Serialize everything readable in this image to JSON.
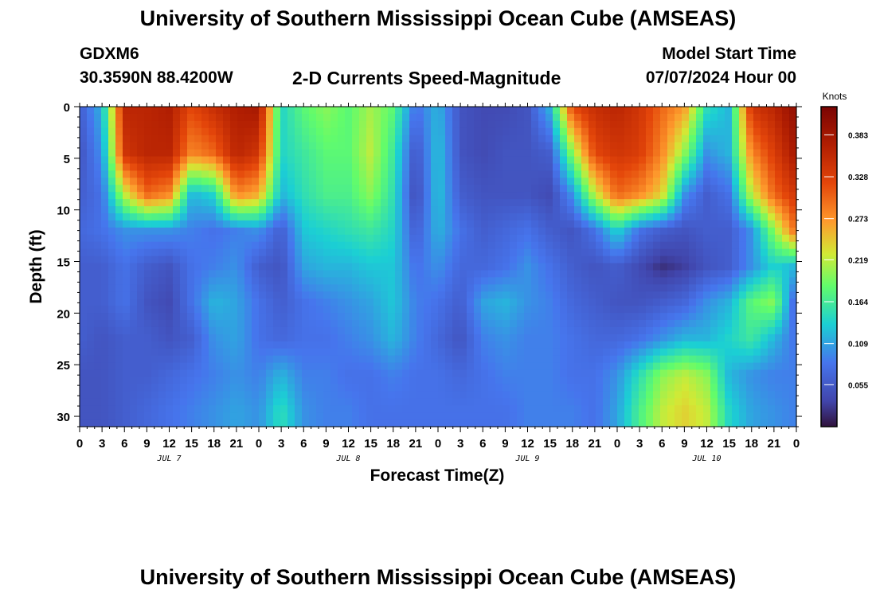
{
  "title": "University of Southern Mississippi Ocean Cube (AMSEAS)",
  "station": {
    "name": "GDXM6",
    "coords": "30.3590N  88.4200W"
  },
  "plot_title": "2-D Currents Speed-Magnitude",
  "model_start": {
    "label": "Model Start Time",
    "value": "07/07/2024 Hour 00"
  },
  "footer_title": "University of Southern Mississippi Ocean Cube (AMSEAS)",
  "chart_data": {
    "type": "heatmap",
    "title": "2-D Currents Speed-Magnitude",
    "xlabel": "Forecast Time(Z)",
    "ylabel": "Depth (ft)",
    "x_units": "forecast hours from 07/07/2024 00Z",
    "xlim": [
      0,
      96
    ],
    "ylim": [
      31,
      0
    ],
    "x_ticks": [
      "0",
      "3",
      "6",
      "9",
      "12",
      "15",
      "18",
      "21",
      "0",
      "3",
      "6",
      "9",
      "12",
      "15",
      "18",
      "21",
      "0",
      "3",
      "6",
      "9",
      "12",
      "15",
      "18",
      "21",
      "0",
      "3",
      "6",
      "9",
      "12",
      "15",
      "18",
      "21",
      "0"
    ],
    "day_labels": [
      "JUL 7",
      "JUL 8",
      "JUL 9",
      "JUL 10"
    ],
    "y_ticks": [
      "0",
      "5",
      "10",
      "15",
      "20",
      "25",
      "30"
    ],
    "colorbar": {
      "label": "Knots",
      "range": [
        0,
        0.42
      ],
      "ticks": [
        "0.383",
        "0.328",
        "0.273",
        "0.219",
        "0.164",
        "0.109",
        "0.055"
      ],
      "colormap": "turbo"
    },
    "depth_levels": [
      0,
      4.5,
      8.5,
      12,
      15.5,
      19,
      22.5,
      26,
      29.5
    ],
    "hours": [
      0,
      3,
      6,
      9,
      12,
      15,
      18,
      21,
      24,
      27,
      30,
      33,
      36,
      39,
      42,
      45,
      48,
      51,
      54,
      57,
      60,
      63,
      66,
      69,
      72,
      75,
      78,
      81,
      84,
      87,
      90,
      93,
      96
    ],
    "speed_knots": [
      [
        0.06,
        0.12,
        0.36,
        0.36,
        0.37,
        0.32,
        0.35,
        0.37,
        0.38,
        0.14,
        0.18,
        0.2,
        0.18,
        0.21,
        0.18,
        0.08,
        0.12,
        0.05,
        0.04,
        0.04,
        0.05,
        0.12,
        0.32,
        0.35,
        0.36,
        0.34,
        0.3,
        0.27,
        0.15,
        0.12,
        0.34,
        0.36,
        0.4
      ],
      [
        0.05,
        0.1,
        0.34,
        0.36,
        0.36,
        0.28,
        0.3,
        0.36,
        0.34,
        0.14,
        0.16,
        0.18,
        0.18,
        0.22,
        0.16,
        0.05,
        0.13,
        0.05,
        0.04,
        0.05,
        0.05,
        0.06,
        0.2,
        0.32,
        0.34,
        0.33,
        0.28,
        0.2,
        0.1,
        0.12,
        0.28,
        0.33,
        0.38
      ],
      [
        0.06,
        0.08,
        0.22,
        0.3,
        0.28,
        0.12,
        0.14,
        0.28,
        0.26,
        0.12,
        0.15,
        0.17,
        0.17,
        0.2,
        0.15,
        0.04,
        0.13,
        0.06,
        0.05,
        0.05,
        0.05,
        0.04,
        0.1,
        0.22,
        0.3,
        0.28,
        0.24,
        0.1,
        0.06,
        0.08,
        0.22,
        0.3,
        0.34
      ],
      [
        0.07,
        0.08,
        0.1,
        0.1,
        0.1,
        0.09,
        0.08,
        0.09,
        0.1,
        0.06,
        0.13,
        0.14,
        0.15,
        0.16,
        0.14,
        0.06,
        0.12,
        0.08,
        0.06,
        0.07,
        0.08,
        0.06,
        0.05,
        0.08,
        0.14,
        0.08,
        0.06,
        0.05,
        0.06,
        0.06,
        0.1,
        0.2,
        0.3
      ],
      [
        0.06,
        0.06,
        0.08,
        0.06,
        0.05,
        0.08,
        0.09,
        0.1,
        0.06,
        0.05,
        0.11,
        0.12,
        0.12,
        0.13,
        0.13,
        0.08,
        0.1,
        0.07,
        0.07,
        0.08,
        0.1,
        0.08,
        0.06,
        0.05,
        0.06,
        0.04,
        0.02,
        0.03,
        0.05,
        0.06,
        0.1,
        0.14,
        0.12
      ],
      [
        0.06,
        0.06,
        0.08,
        0.05,
        0.04,
        0.08,
        0.12,
        0.11,
        0.08,
        0.06,
        0.08,
        0.09,
        0.1,
        0.11,
        0.13,
        0.09,
        0.08,
        0.06,
        0.11,
        0.12,
        0.1,
        0.09,
        0.07,
        0.06,
        0.05,
        0.05,
        0.06,
        0.07,
        0.1,
        0.12,
        0.18,
        0.2,
        0.06
      ],
      [
        0.06,
        0.05,
        0.06,
        0.06,
        0.05,
        0.06,
        0.1,
        0.11,
        0.08,
        0.07,
        0.08,
        0.08,
        0.09,
        0.1,
        0.12,
        0.09,
        0.07,
        0.05,
        0.09,
        0.1,
        0.09,
        0.09,
        0.08,
        0.07,
        0.07,
        0.08,
        0.1,
        0.12,
        0.12,
        0.14,
        0.16,
        0.12,
        0.08
      ],
      [
        0.05,
        0.05,
        0.06,
        0.06,
        0.07,
        0.08,
        0.09,
        0.1,
        0.09,
        0.12,
        0.09,
        0.09,
        0.08,
        0.08,
        0.09,
        0.08,
        0.08,
        0.07,
        0.08,
        0.09,
        0.09,
        0.09,
        0.08,
        0.08,
        0.1,
        0.15,
        0.2,
        0.22,
        0.2,
        0.12,
        0.1,
        0.09,
        0.09
      ],
      [
        0.05,
        0.05,
        0.06,
        0.07,
        0.08,
        0.09,
        0.1,
        0.11,
        0.1,
        0.15,
        0.1,
        0.09,
        0.09,
        0.08,
        0.08,
        0.08,
        0.08,
        0.08,
        0.08,
        0.08,
        0.09,
        0.09,
        0.09,
        0.08,
        0.11,
        0.17,
        0.22,
        0.24,
        0.22,
        0.14,
        0.11,
        0.1,
        0.09
      ]
    ]
  }
}
